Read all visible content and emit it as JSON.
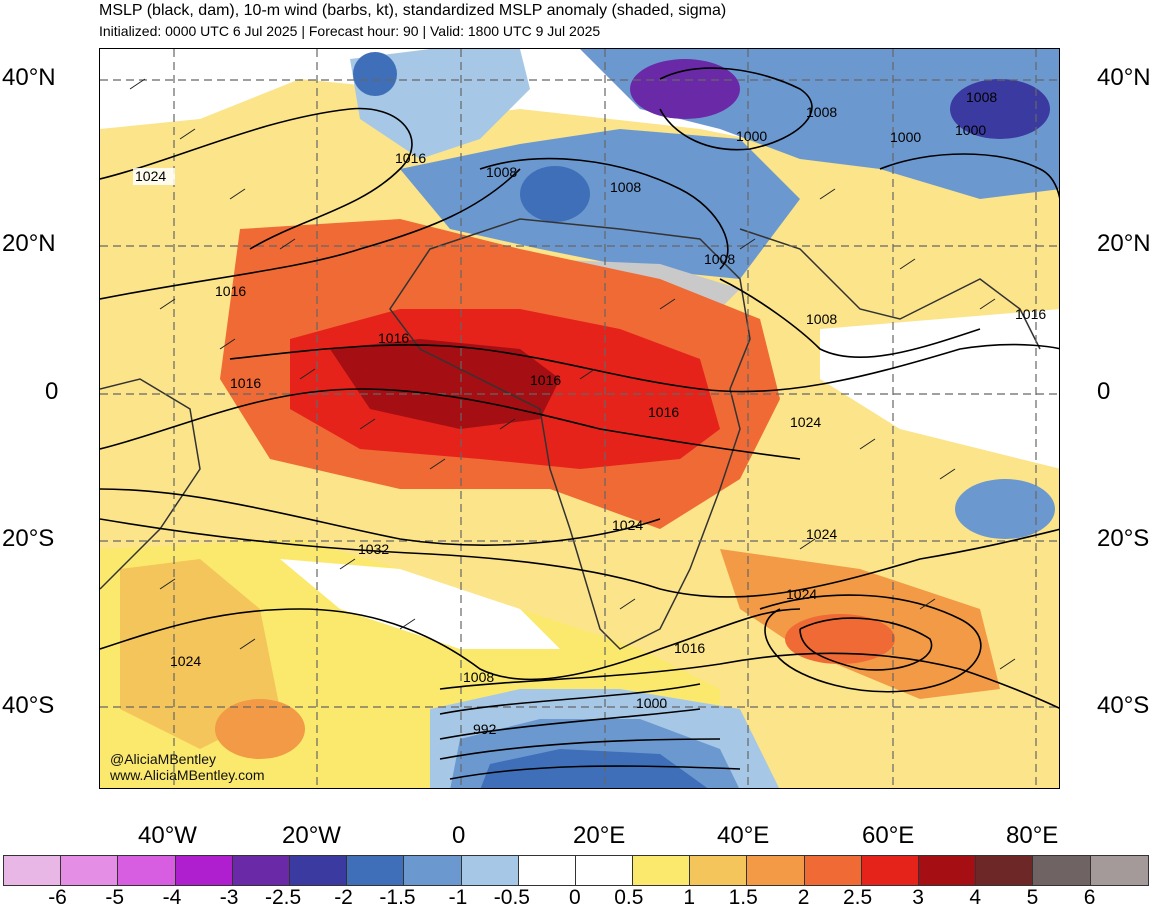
{
  "header": {
    "title": "MSLP (black, dam), 10-m wind (barbs, kt), standardized MSLP anomaly (shaded, sigma)",
    "subtitle": "Initialized: 0000 UTC 6 Jul 2025 | Forecast hour: 90 | Valid: 1800 UTC 9 Jul 2025"
  },
  "axes": {
    "lat_left": [
      "40°N",
      "20°N",
      "0",
      "20°S",
      "40°S"
    ],
    "lat_right": [
      "40°N",
      "20°N",
      "0",
      "20°S",
      "40°S"
    ],
    "lon": [
      "40°W",
      "20°W",
      "0",
      "20°E",
      "40°E",
      "60°E",
      "80°E"
    ]
  },
  "contour_labels": [
    "1024",
    "1016",
    "1008",
    "1008",
    "1008",
    "1000",
    "1008",
    "1000",
    "1000",
    "1016",
    "1016",
    "1016",
    "1016",
    "1016",
    "1008",
    "1008",
    "1016",
    "1024",
    "1024",
    "1024",
    "1032",
    "1024",
    "1024",
    "1016",
    "1008",
    "1000",
    "992"
  ],
  "credits": {
    "handle": "@AliciaMBentley",
    "website": "www.AliciaMBentley.com"
  },
  "colorbar": {
    "colors": [
      "#e9b7e6",
      "#e58ee6",
      "#d75ee0",
      "#b01fcf",
      "#6a2aa8",
      "#3b3aa0",
      "#3f6fb8",
      "#6c98d0",
      "#a6c8e6",
      "#ffffff",
      "#ffffff",
      "#fbe96e",
      "#f4c55b",
      "#f29a45",
      "#ef6a34",
      "#e5231b",
      "#a50f13",
      "#6e2727",
      "#6f6363",
      "#a49a9a"
    ],
    "labels": [
      "-6",
      "-5",
      "-4",
      "-3",
      "-2.5",
      "-2",
      "-1.5",
      "-1",
      "-0.5",
      "0",
      "0.5",
      "1",
      "1.5",
      "2",
      "2.5",
      "3",
      "4",
      "5",
      "6"
    ]
  }
}
